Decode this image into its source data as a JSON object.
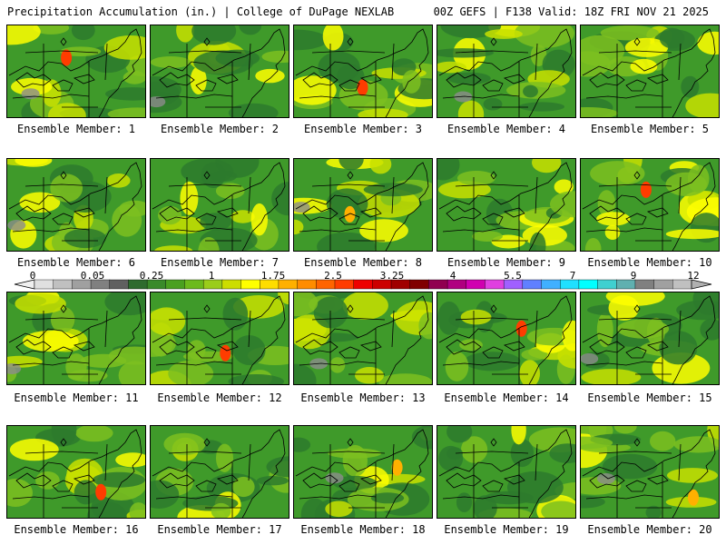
{
  "header": {
    "left_title": "Precipitation Accumulation (in.) | College of DuPage NEXLAB",
    "right_title": "00Z GEFS | F138 Valid: 18Z FRI NOV 21 2025"
  },
  "panels": [
    {
      "label": "Ensemble Member: 1"
    },
    {
      "label": "Ensemble Member: 2"
    },
    {
      "label": "Ensemble Member: 3"
    },
    {
      "label": "Ensemble Member: 4"
    },
    {
      "label": "Ensemble Member: 5"
    },
    {
      "label": "Ensemble Member: 6"
    },
    {
      "label": "Ensemble Member: 7"
    },
    {
      "label": "Ensemble Member: 8"
    },
    {
      "label": "Ensemble Member: 9"
    },
    {
      "label": "Ensemble Member: 10"
    },
    {
      "label": "Ensemble Member: 11"
    },
    {
      "label": "Ensemble Member: 12"
    },
    {
      "label": "Ensemble Member: 13"
    },
    {
      "label": "Ensemble Member: 14"
    },
    {
      "label": "Ensemble Member: 15"
    },
    {
      "label": "Ensemble Member: 16"
    },
    {
      "label": "Ensemble Member: 17"
    },
    {
      "label": "Ensemble Member: 18"
    },
    {
      "label": "Ensemble Member: 19"
    },
    {
      "label": "Ensemble Member: 20"
    }
  ],
  "colorbar": {
    "tick_labels": [
      "0",
      "0.05",
      "0.25",
      "1",
      "1.75",
      "2.5",
      "3.25",
      "4",
      "5.5",
      "7",
      "9",
      "12"
    ],
    "colors": [
      "#e0e0e0",
      "#c0c0c0",
      "#a0a0a0",
      "#808080",
      "#606060",
      "#2e6b2e",
      "#3a8a2a",
      "#4aa020",
      "#6cba1c",
      "#9acd1a",
      "#ccdd00",
      "#ffff00",
      "#ffdd00",
      "#ffb000",
      "#ff8c00",
      "#ff6400",
      "#ff3c00",
      "#ee0000",
      "#cc0000",
      "#a00000",
      "#800000",
      "#900050",
      "#b00080",
      "#d000b0",
      "#e040e0",
      "#a060ff",
      "#6080ff",
      "#40b0ff",
      "#20e0ff",
      "#00ffff",
      "#40d0d0",
      "#60b0b0",
      "#808080",
      "#a0a0a0",
      "#c0c0c0"
    ]
  },
  "map_colors": {
    "dark_green": "#2d7a2d",
    "mid_green": "#3f9a2a",
    "light_green": "#7cc020",
    "yellow_green": "#c8e000",
    "yellow": "#ffff00",
    "orange": "#ffb000",
    "red": "#ff3c00",
    "gray": "#8c8c8c"
  }
}
